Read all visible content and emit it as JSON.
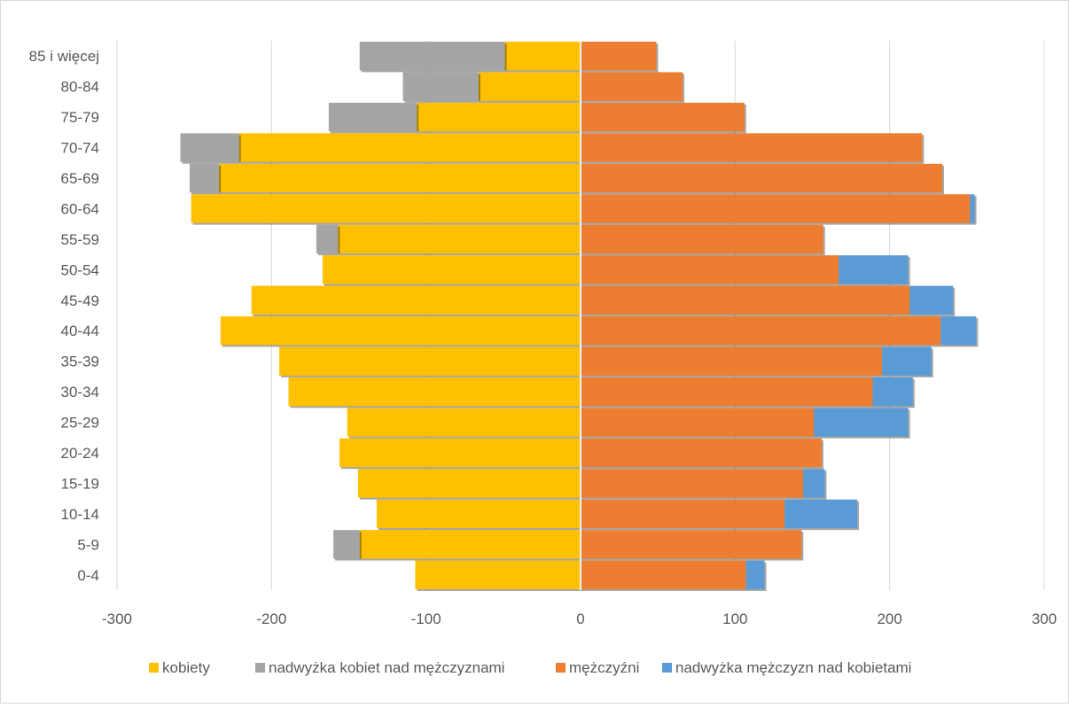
{
  "chart_data": {
    "type": "bar",
    "orientation": "horizontal",
    "stacked": true,
    "title": "",
    "xlabel": "",
    "ylabel": "",
    "xlim": [
      -300,
      300
    ],
    "xticks": [
      -300,
      -200,
      -100,
      0,
      100,
      200,
      300
    ],
    "grid": "vertical",
    "legend_position": "bottom",
    "categories": [
      "0-4",
      "5-9",
      "10-14",
      "15-19",
      "20-24",
      "25-29",
      "30-34",
      "35-39",
      "40-44",
      "45-49",
      "50-54",
      "55-59",
      "60-64",
      "65-69",
      "70-74",
      "75-79",
      "80-84",
      "85 i więcej"
    ],
    "series": [
      {
        "name": "kobiety",
        "color": "#FFC000",
        "side": "left",
        "values": [
          -107,
          -143,
          -132,
          -144,
          -156,
          -151,
          -189,
          -195,
          -233,
          -213,
          -167,
          -157,
          -252,
          -234,
          -221,
          -106,
          -66,
          -49
        ]
      },
      {
        "name": "nadwyżka kobiet nad mężczyznami",
        "color": "#A5A5A5",
        "side": "left",
        "values": [
          0,
          -17,
          0,
          0,
          0,
          0,
          0,
          0,
          0,
          0,
          0,
          -14,
          0,
          -19,
          -38,
          -57,
          -49,
          -94
        ]
      },
      {
        "name": "mężczyźni",
        "color": "#ED7D31",
        "side": "right",
        "values": [
          107,
          143,
          132,
          144,
          156,
          151,
          189,
          195,
          233,
          213,
          167,
          157,
          252,
          234,
          221,
          106,
          66,
          49
        ]
      },
      {
        "name": "nadwyżka mężczyzn nad kobietami",
        "color": "#5B9BD5",
        "side": "right",
        "values": [
          12,
          0,
          47,
          14,
          0,
          61,
          26,
          32,
          23,
          28,
          45,
          0,
          3,
          0,
          0,
          0,
          0,
          0
        ]
      }
    ]
  }
}
